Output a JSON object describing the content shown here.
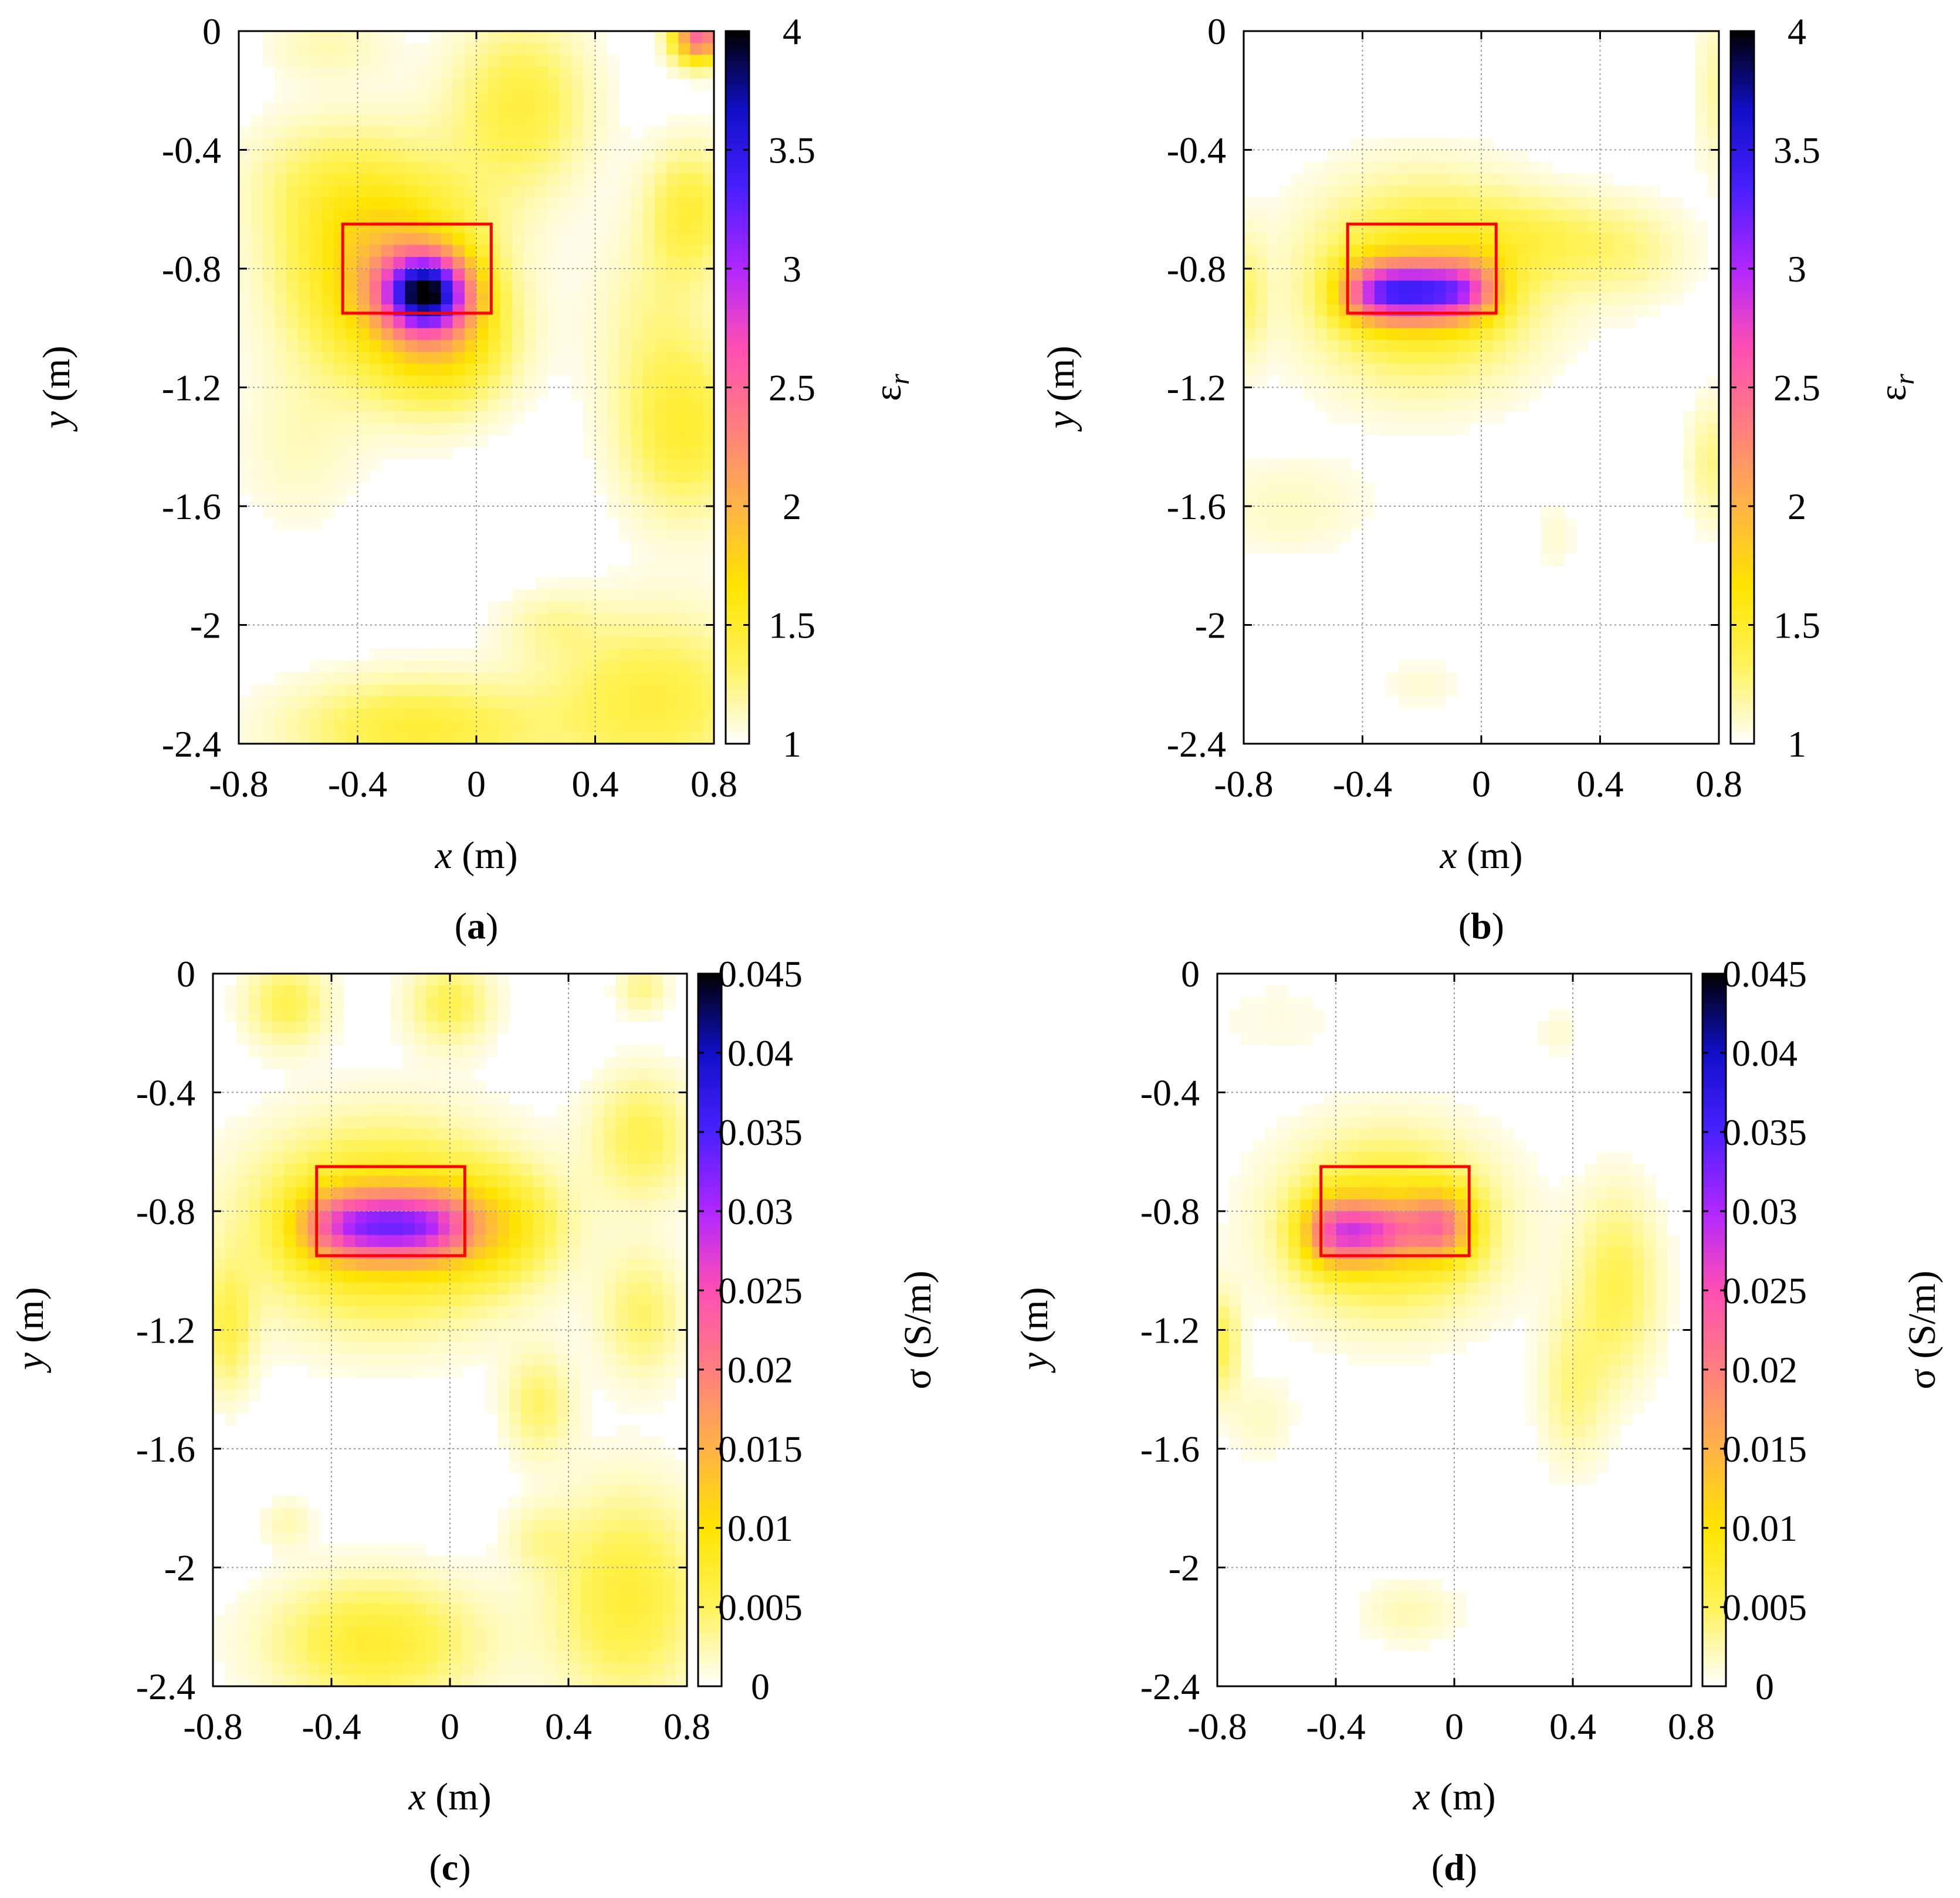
{
  "colormap": {
    "stops": [
      "#ffffff",
      "#fff35a",
      "#ffe400",
      "#ffb347",
      "#ff7f7f",
      "#ff4fb3",
      "#b026ff",
      "#4a20ff",
      "#1010c8",
      "#000000"
    ],
    "axis_frame_color": "#000000",
    "grid_color": "#9a9a9a",
    "target_box_color": "#ff0000"
  },
  "chart_data": [
    {
      "panel": "a",
      "type": "heatmap",
      "title": "",
      "xlabel": "x (m)",
      "ylabel": "y (m)",
      "xlim": [
        -0.8,
        0.8
      ],
      "ylim": [
        -2.4,
        0
      ],
      "xticks": [
        "-0.8",
        "-0.4",
        "0",
        "0.4",
        "0.8"
      ],
      "yticks": [
        "0",
        "-0.4",
        "-0.8",
        "-1.2",
        "-1.6",
        "-2",
        "-2.4"
      ],
      "colorbar": {
        "label": "εr",
        "label_base": "ε",
        "label_sub": "r",
        "min": 1,
        "max": 4,
        "ticks": [
          "1",
          "1.5",
          "2",
          "2.5",
          "3",
          "3.5",
          "4"
        ]
      },
      "target_box": {
        "x": [
          -0.45,
          0.05
        ],
        "y": [
          -0.95,
          -0.65
        ]
      },
      "blobs": [
        {
          "x": -0.17,
          "y": -0.88,
          "sx": 0.1,
          "sy": 0.09,
          "a": 0.72
        },
        {
          "x": -0.3,
          "y": -0.8,
          "sx": 0.22,
          "sy": 0.24,
          "a": 0.3
        },
        {
          "x": -0.1,
          "y": -1.05,
          "sx": 0.15,
          "sy": 0.15,
          "a": 0.18
        },
        {
          "x": 0.15,
          "y": -0.25,
          "sx": 0.16,
          "sy": 0.2,
          "a": 0.14
        },
        {
          "x": -0.55,
          "y": -0.5,
          "sx": 0.18,
          "sy": 0.15,
          "a": 0.06
        },
        {
          "x": 0.72,
          "y": -0.6,
          "sx": 0.1,
          "sy": 0.15,
          "a": 0.14
        },
        {
          "x": 0.7,
          "y": -1.35,
          "sx": 0.15,
          "sy": 0.2,
          "a": 0.15
        },
        {
          "x": 0.6,
          "y": -0.95,
          "sx": 0.15,
          "sy": 0.22,
          "a": 0.06
        },
        {
          "x": -0.6,
          "y": -1.4,
          "sx": 0.15,
          "sy": 0.2,
          "a": 0.04
        },
        {
          "x": -0.2,
          "y": -2.35,
          "sx": 0.3,
          "sy": 0.12,
          "a": 0.15
        },
        {
          "x": 0.6,
          "y": -2.25,
          "sx": 0.25,
          "sy": 0.2,
          "a": 0.14
        },
        {
          "x": 0.75,
          "y": -0.02,
          "sx": 0.06,
          "sy": 0.06,
          "a": 0.5
        },
        {
          "x": -0.5,
          "y": -0.05,
          "sx": 0.15,
          "sy": 0.08,
          "a": 0.05
        },
        {
          "x": 0.25,
          "y": -2.0,
          "sx": 0.12,
          "sy": 0.08,
          "a": 0.05
        }
      ]
    },
    {
      "panel": "b",
      "type": "heatmap",
      "title": "",
      "xlabel": "x (m)",
      "ylabel": "y (m)",
      "xlim": [
        -0.8,
        0.8
      ],
      "ylim": [
        -2.4,
        0
      ],
      "xticks": [
        "-0.8",
        "-0.4",
        "0",
        "0.4",
        "0.8"
      ],
      "yticks": [
        "0",
        "-0.4",
        "-0.8",
        "-1.2",
        "-1.6",
        "-2",
        "-2.4"
      ],
      "colorbar": {
        "label": "εr",
        "label_base": "ε",
        "label_sub": "r",
        "min": 1,
        "max": 4,
        "ticks": [
          "1",
          "1.5",
          "2",
          "2.5",
          "3",
          "3.5",
          "4"
        ]
      },
      "target_box": {
        "x": [
          -0.45,
          0.05
        ],
        "y": [
          -0.95,
          -0.65
        ]
      },
      "blobs": [
        {
          "x": -0.37,
          "y": -0.88,
          "sx": 0.08,
          "sy": 0.07,
          "a": 0.38
        },
        {
          "x": -0.25,
          "y": -0.88,
          "sx": 0.08,
          "sy": 0.07,
          "a": 0.38
        },
        {
          "x": -0.12,
          "y": -0.88,
          "sx": 0.08,
          "sy": 0.07,
          "a": 0.38
        },
        {
          "x": -0.02,
          "y": -0.87,
          "sx": 0.07,
          "sy": 0.07,
          "a": 0.22
        },
        {
          "x": -0.2,
          "y": -0.85,
          "sx": 0.26,
          "sy": 0.22,
          "a": 0.22
        },
        {
          "x": 0.2,
          "y": -0.7,
          "sx": 0.2,
          "sy": 0.1,
          "a": 0.08
        },
        {
          "x": 0.5,
          "y": -0.75,
          "sx": 0.15,
          "sy": 0.12,
          "a": 0.06
        },
        {
          "x": -0.78,
          "y": -0.9,
          "sx": 0.04,
          "sy": 0.15,
          "a": 0.08
        },
        {
          "x": 0.78,
          "y": -0.2,
          "sx": 0.04,
          "sy": 0.2,
          "a": 0.06
        },
        {
          "x": 0.78,
          "y": -1.45,
          "sx": 0.06,
          "sy": 0.15,
          "a": 0.08
        },
        {
          "x": -0.65,
          "y": -1.6,
          "sx": 0.2,
          "sy": 0.12,
          "a": 0.04
        },
        {
          "x": -0.2,
          "y": -2.2,
          "sx": 0.1,
          "sy": 0.06,
          "a": 0.03
        },
        {
          "x": 0.25,
          "y": -1.7,
          "sx": 0.05,
          "sy": 0.1,
          "a": 0.03
        }
      ]
    },
    {
      "panel": "c",
      "type": "heatmap",
      "title": "",
      "xlabel": "x (m)",
      "ylabel": "y (m)",
      "xlim": [
        -0.8,
        0.8
      ],
      "ylim": [
        -2.4,
        0
      ],
      "xticks": [
        "-0.8",
        "-0.4",
        "0",
        "0.4",
        "0.8"
      ],
      "yticks": [
        "0",
        "-0.4",
        "-0.8",
        "-1.2",
        "-1.6",
        "-2",
        "-2.4"
      ],
      "colorbar": {
        "label": "σ (S/m)",
        "min": 0,
        "max": 0.045,
        "ticks": [
          "0",
          "0.005",
          "0.01",
          "0.015",
          "0.02",
          "0.025",
          "0.03",
          "0.035",
          "0.04",
          "0.045"
        ]
      },
      "target_box": {
        "x": [
          -0.45,
          0.05
        ],
        "y": [
          -0.95,
          -0.65
        ]
      },
      "blobs": [
        {
          "x": -0.38,
          "y": -0.85,
          "sx": 0.1,
          "sy": 0.08,
          "a": 0.3
        },
        {
          "x": -0.22,
          "y": -0.85,
          "sx": 0.1,
          "sy": 0.08,
          "a": 0.32
        },
        {
          "x": -0.06,
          "y": -0.85,
          "sx": 0.1,
          "sy": 0.08,
          "a": 0.3
        },
        {
          "x": -0.22,
          "y": -0.85,
          "sx": 0.3,
          "sy": 0.22,
          "a": 0.25
        },
        {
          "x": 0.15,
          "y": -0.85,
          "sx": 0.15,
          "sy": 0.12,
          "a": 0.15
        },
        {
          "x": -0.25,
          "y": -2.25,
          "sx": 0.25,
          "sy": 0.15,
          "a": 0.16
        },
        {
          "x": 0.6,
          "y": -2.1,
          "sx": 0.18,
          "sy": 0.25,
          "a": 0.15
        },
        {
          "x": 0.65,
          "y": -0.55,
          "sx": 0.12,
          "sy": 0.15,
          "a": 0.12
        },
        {
          "x": 0.65,
          "y": -1.15,
          "sx": 0.1,
          "sy": 0.15,
          "a": 0.1
        },
        {
          "x": -0.75,
          "y": -1.2,
          "sx": 0.06,
          "sy": 0.15,
          "a": 0.12
        },
        {
          "x": -0.55,
          "y": -0.1,
          "sx": 0.1,
          "sy": 0.1,
          "a": 0.12
        },
        {
          "x": 0.0,
          "y": -0.1,
          "sx": 0.1,
          "sy": 0.1,
          "a": 0.12
        },
        {
          "x": 0.65,
          "y": -0.05,
          "sx": 0.06,
          "sy": 0.06,
          "a": 0.08
        },
        {
          "x": 0.3,
          "y": -1.45,
          "sx": 0.08,
          "sy": 0.12,
          "a": 0.1
        },
        {
          "x": -0.55,
          "y": -1.85,
          "sx": 0.06,
          "sy": 0.06,
          "a": 0.05
        },
        {
          "x": 0.3,
          "y": -1.9,
          "sx": 0.08,
          "sy": 0.08,
          "a": 0.05
        }
      ]
    },
    {
      "panel": "d",
      "type": "heatmap",
      "title": "",
      "xlabel": "x (m)",
      "ylabel": "y (m)",
      "xlim": [
        -0.8,
        0.8
      ],
      "ylim": [
        -2.4,
        0
      ],
      "xticks": [
        "-0.8",
        "-0.4",
        "0",
        "0.4",
        "0.8"
      ],
      "yticks": [
        "0",
        "-0.4",
        "-0.8",
        "-1.2",
        "-1.6",
        "-2",
        "-2.4"
      ],
      "colorbar": {
        "label": "σ (S/m)",
        "min": 0,
        "max": 0.045,
        "ticks": [
          "0",
          "0.005",
          "0.01",
          "0.015",
          "0.02",
          "0.025",
          "0.03",
          "0.035",
          "0.04",
          "0.045"
        ]
      },
      "target_box": {
        "x": [
          -0.45,
          0.05
        ],
        "y": [
          -0.95,
          -0.65
        ]
      },
      "blobs": [
        {
          "x": -0.4,
          "y": -0.87,
          "sx": 0.08,
          "sy": 0.08,
          "a": 0.38
        },
        {
          "x": -0.25,
          "y": -0.87,
          "sx": 0.08,
          "sy": 0.07,
          "a": 0.28
        },
        {
          "x": -0.05,
          "y": -0.85,
          "sx": 0.08,
          "sy": 0.08,
          "a": 0.32
        },
        {
          "x": -0.22,
          "y": -0.85,
          "sx": 0.24,
          "sy": 0.2,
          "a": 0.22
        },
        {
          "x": 0.55,
          "y": -1.05,
          "sx": 0.1,
          "sy": 0.22,
          "a": 0.12
        },
        {
          "x": 0.4,
          "y": -1.4,
          "sx": 0.08,
          "sy": 0.18,
          "a": 0.08
        },
        {
          "x": -0.78,
          "y": -1.25,
          "sx": 0.04,
          "sy": 0.12,
          "a": 0.12
        },
        {
          "x": -0.65,
          "y": -1.5,
          "sx": 0.08,
          "sy": 0.1,
          "a": 0.04
        },
        {
          "x": -0.15,
          "y": -2.15,
          "sx": 0.12,
          "sy": 0.08,
          "a": 0.05
        },
        {
          "x": 0.35,
          "y": -0.2,
          "sx": 0.06,
          "sy": 0.06,
          "a": 0.03
        },
        {
          "x": -0.6,
          "y": -0.15,
          "sx": 0.2,
          "sy": 0.12,
          "a": 0.02
        }
      ]
    }
  ]
}
